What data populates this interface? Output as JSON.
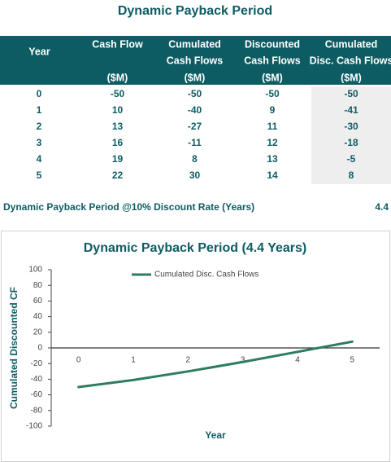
{
  "title": "Dynamic Payback Period",
  "table": {
    "headers": [
      {
        "lines": [
          "Year"
        ]
      },
      {
        "lines": [
          "Cash Flow"
        ],
        "unit": "($M)"
      },
      {
        "lines": [
          "Cumulated",
          "Cash Flows"
        ],
        "unit": "($M)"
      },
      {
        "lines": [
          "Discounted",
          "Cash Flows"
        ],
        "unit": "($M)"
      },
      {
        "lines": [
          "Cumulated",
          "Disc. Cash Flows"
        ],
        "unit": "($M)"
      }
    ],
    "rows": [
      [
        0,
        -50,
        -50,
        -50,
        -50
      ],
      [
        1,
        10,
        -40,
        9,
        -41
      ],
      [
        2,
        13,
        -27,
        11,
        -30
      ],
      [
        3,
        16,
        -11,
        12,
        -18
      ],
      [
        4,
        19,
        8,
        13,
        -5
      ],
      [
        5,
        22,
        30,
        14,
        8
      ]
    ]
  },
  "summary": {
    "label": "Dynamic Payback Period @10% Discount Rate (Years)",
    "value": 4.4
  },
  "chart_data": {
    "type": "line",
    "title": "Dynamic Payback Period (4.4 Years)",
    "x_label": "Year",
    "y_label": "Cumulated Discounted CF",
    "categories": [
      0,
      1,
      2,
      3,
      4,
      5
    ],
    "series": [
      {
        "name": "Cumulated Disc. Cash Flows",
        "color": "#2e7d5e",
        "values": [
          -50,
          -41,
          -30,
          -18,
          -5,
          8
        ]
      }
    ],
    "ylim": [
      -100,
      100
    ],
    "yticks": [
      -100,
      -80,
      -60,
      -40,
      -20,
      0,
      20,
      40,
      60,
      80,
      100
    ],
    "legend": "top"
  }
}
